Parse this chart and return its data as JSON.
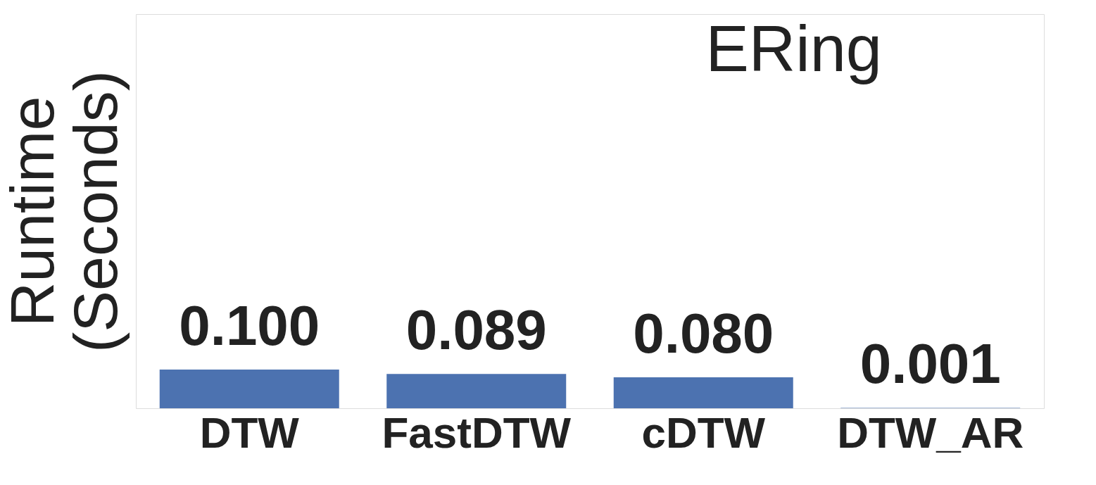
{
  "chart_data": {
    "type": "bar",
    "title": "ERing",
    "ylabel": "Runtime\n(Seconds)",
    "categories": [
      "DTW",
      "FastDTW",
      "cDTW",
      "DTW_AR"
    ],
    "values": [
      0.1,
      0.089,
      0.08,
      0.001
    ],
    "value_labels": [
      "0.100",
      "0.089",
      "0.080",
      "0.001"
    ],
    "color": "#4c72b0",
    "tick_labels": "x"
  }
}
